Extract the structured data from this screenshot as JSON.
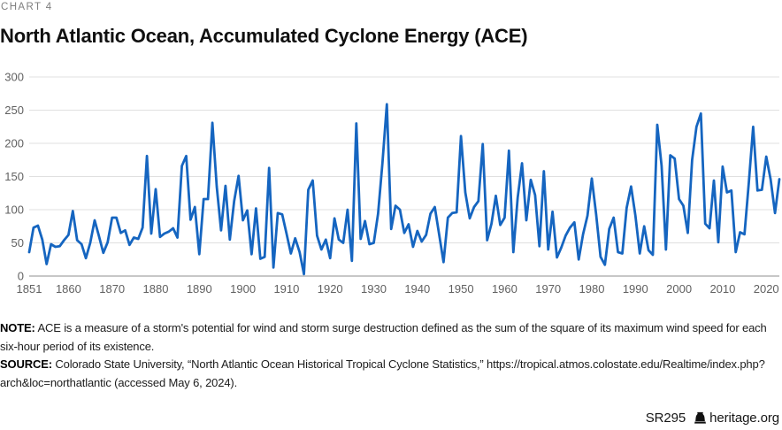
{
  "page": {
    "kicker": "CHART 4",
    "title": "North Atlantic Ocean, Accumulated Cyclone Energy (ACE)"
  },
  "chart_data": {
    "type": "line",
    "title": "North Atlantic Ocean, Accumulated Cyclone Energy (ACE)",
    "xlabel": "",
    "ylabel": "",
    "x_start": 1851,
    "x_end": 2023,
    "values": [
      36,
      73,
      76,
      55,
      18,
      48,
      44,
      45,
      54,
      62,
      98,
      54,
      48,
      27,
      50,
      84,
      60,
      35,
      51,
      88,
      88,
      65,
      69,
      47,
      58,
      56,
      73,
      181,
      64,
      131,
      59,
      64,
      67,
      72,
      58,
      166,
      181,
      85,
      104,
      33,
      116,
      116,
      231,
      135,
      69,
      136,
      55,
      113,
      151,
      84,
      99,
      33,
      102,
      26,
      29,
      163,
      13,
      95,
      93,
      64,
      34,
      57,
      36,
      3,
      130,
      144,
      61,
      40,
      55,
      27,
      87,
      55,
      50,
      100,
      23,
      230,
      56,
      83,
      48,
      50,
      94,
      170,
      259,
      71,
      106,
      100,
      65,
      78,
      44,
      68,
      52,
      62,
      94,
      104,
      63,
      21,
      88,
      95,
      96,
      211,
      126,
      87,
      104,
      113,
      199,
      54,
      79,
      121,
      77,
      88,
      189,
      36,
      118,
      170,
      84,
      145,
      122,
      45,
      158,
      40,
      97,
      28,
      43,
      61,
      73,
      81,
      25,
      63,
      91,
      147,
      93,
      29,
      17,
      71,
      88,
      36,
      34,
      103,
      135,
      91,
      34,
      75,
      39,
      32,
      228,
      166,
      40,
      182,
      177,
      116,
      106,
      65,
      175,
      225,
      245,
      79,
      72,
      144,
      51,
      165,
      126,
      129,
      36,
      66,
      63,
      141,
      225,
      129,
      130,
      180,
      146,
      95,
      146
    ],
    "xticks": [
      1851,
      1860,
      1870,
      1880,
      1890,
      1900,
      1910,
      1920,
      1930,
      1940,
      1950,
      1960,
      1970,
      1980,
      1990,
      2000,
      2010,
      2020
    ],
    "yticks": [
      0,
      50,
      100,
      150,
      200,
      250,
      300
    ],
    "ylim": [
      0,
      300
    ],
    "grid": true,
    "legend_position": "none",
    "line_color": "#1565c0",
    "grid_color": "#e0e0e0",
    "axis_color": "#8f8f8f",
    "tick_label_color": "#616161"
  },
  "notes": {
    "note_label": "NOTE:",
    "note_line1": "ACE is a measure of a storm's potential for wind and storm surge destruction defined as the sum of the square of its maximum wind speed for each",
    "note_line2": "six-hour period of its existence.",
    "source_label": "SOURCE:",
    "source_line1": "Colorado State University, “North Atlantic Ocean Historical Tropical Cyclone Statistics,” https://tropical.atmos.colostate.edu/Realtime/index.php?",
    "source_line2": "arch&loc=northatlantic (accessed May 6, 2024)."
  },
  "footer": {
    "report_id": "SR295",
    "site": "heritage.org",
    "logo_icon": "liberty-bell-icon"
  }
}
